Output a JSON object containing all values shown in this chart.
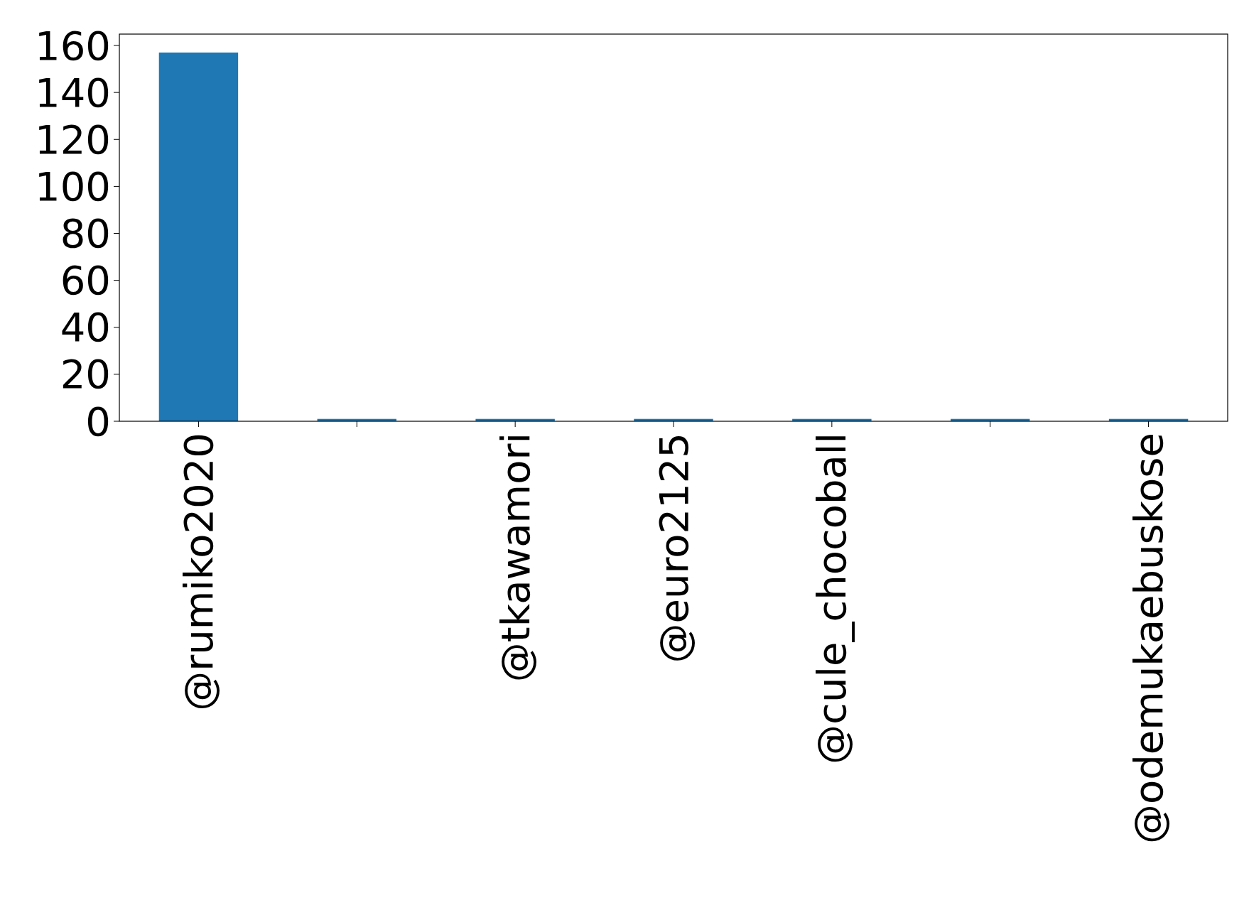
{
  "chart_data": {
    "type": "bar",
    "categories": [
      "@rumiko2020",
      null,
      "@tkawamori",
      "@euro2125",
      "@cule_chocoball",
      null,
      "@odemukaebuskose"
    ],
    "values": [
      157,
      1,
      1,
      1,
      1,
      1,
      1
    ],
    "color": "#1f77b4",
    "ylim": [
      0,
      164.85
    ],
    "yticks": [
      0,
      20,
      40,
      60,
      80,
      100,
      120,
      140,
      160
    ],
    "grid": false
  }
}
